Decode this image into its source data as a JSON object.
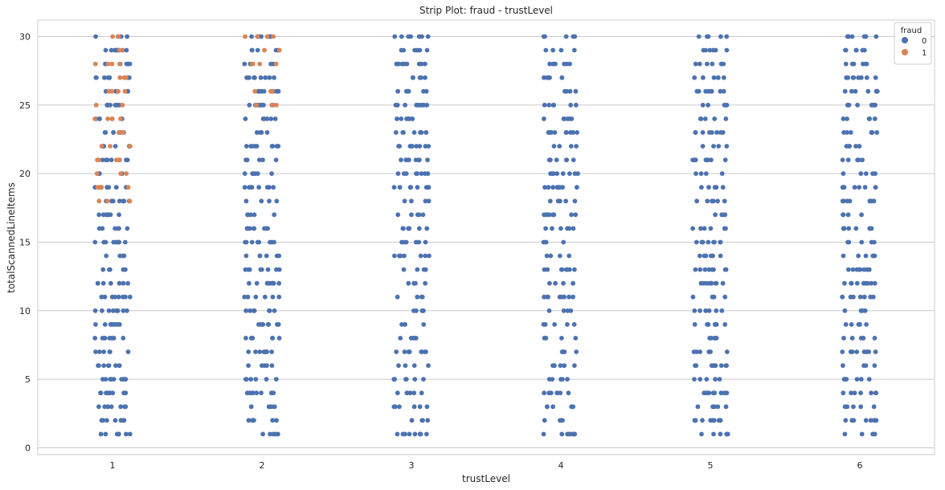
{
  "chart_data": {
    "type": "scatter",
    "subtype": "strip",
    "title": "Strip Plot: fraud - trustLevel",
    "xlabel": "trustLevel",
    "ylabel": "totalScannedLineItems",
    "categories": [
      "1",
      "2",
      "3",
      "4",
      "5",
      "6"
    ],
    "yticks": [
      0,
      5,
      10,
      15,
      20,
      25,
      30
    ],
    "ylim": [
      -0.5,
      31.2
    ],
    "grid": true,
    "legend": {
      "title": "fraud",
      "position": "top-right"
    },
    "series": [
      {
        "name": "0",
        "color": "#4c72b0",
        "y_values_per_category": {
          "1": [
            1,
            2,
            3,
            4,
            5,
            6,
            7,
            8,
            9,
            10,
            11,
            12,
            13,
            14,
            15,
            16,
            17,
            18,
            19,
            20,
            21,
            22,
            23,
            24,
            25,
            26,
            27,
            28,
            29,
            30
          ],
          "2": [
            1,
            2,
            3,
            4,
            5,
            6,
            7,
            8,
            9,
            10,
            11,
            12,
            13,
            14,
            15,
            16,
            17,
            18,
            19,
            20,
            21,
            22,
            23,
            24,
            25,
            26,
            27,
            28,
            29,
            30
          ],
          "3": [
            1,
            2,
            3,
            4,
            5,
            6,
            7,
            8,
            9,
            10,
            11,
            12,
            13,
            14,
            15,
            16,
            17,
            18,
            19,
            20,
            21,
            22,
            23,
            24,
            25,
            26,
            27,
            28,
            29,
            30
          ],
          "4": [
            1,
            2,
            3,
            4,
            5,
            6,
            7,
            8,
            9,
            10,
            11,
            12,
            13,
            14,
            15,
            16,
            17,
            18,
            19,
            20,
            21,
            22,
            23,
            24,
            25,
            26,
            27,
            28,
            29,
            30
          ],
          "5": [
            1,
            2,
            3,
            4,
            5,
            6,
            7,
            8,
            9,
            10,
            11,
            12,
            13,
            14,
            15,
            16,
            17,
            18,
            19,
            20,
            21,
            22,
            23,
            24,
            25,
            26,
            27,
            28,
            29,
            30
          ],
          "6": [
            1,
            2,
            3,
            4,
            5,
            6,
            7,
            8,
            9,
            10,
            11,
            12,
            13,
            14,
            15,
            16,
            17,
            18,
            19,
            20,
            21,
            22,
            23,
            24,
            25,
            26,
            27,
            28,
            29,
            30
          ]
        }
      },
      {
        "name": "1",
        "color": "#dd8452",
        "y_values_per_category": {
          "1": [
            18,
            19,
            20,
            21,
            22,
            23,
            24,
            25,
            26,
            27,
            28,
            29,
            30
          ],
          "2": [
            25,
            26,
            28,
            29,
            30
          ]
        }
      }
    ]
  }
}
